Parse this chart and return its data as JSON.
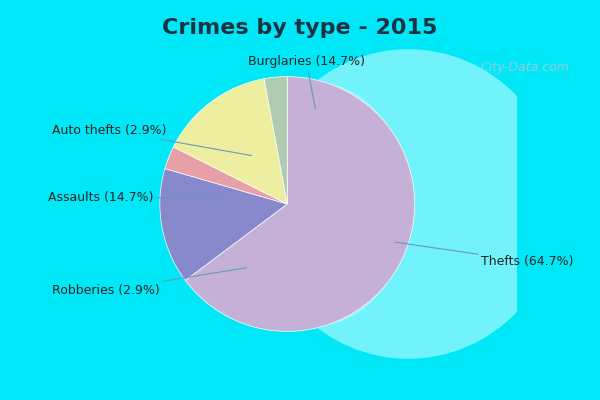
{
  "title": "Crimes by type - 2015",
  "values": [
    64.7,
    14.7,
    2.9,
    14.7,
    2.9
  ],
  "colors": [
    "#c5b0d8",
    "#8888cc",
    "#e8a0a8",
    "#eeeea0",
    "#b0ccb0"
  ],
  "label_texts": [
    "Thefts (64.7%)",
    "Burglaries (14.7%)",
    "Auto thefts (2.9%)",
    "Assaults (14.7%)",
    "Robberies (2.9%)"
  ],
  "border_color": "#00e8f8",
  "bg_color": "#e8f8f0",
  "title_fontsize": 16,
  "label_fontsize": 9,
  "startangle": 90,
  "watermark": "City-Data.com"
}
